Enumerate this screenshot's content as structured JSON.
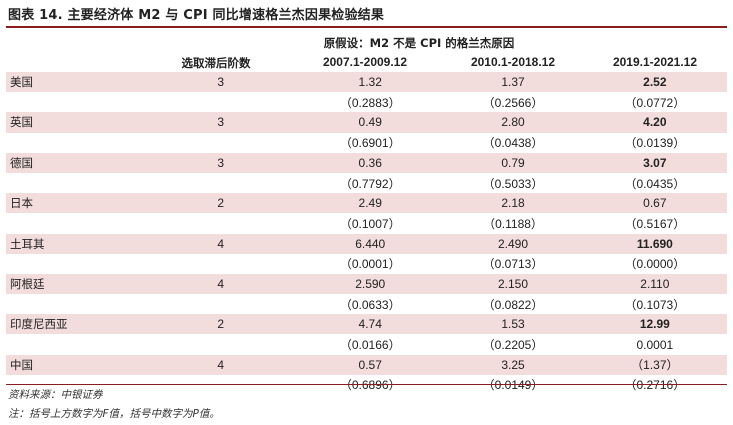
{
  "title": "图表 14. 主要经济体 M2 与 CPI 同比增速格兰杰因果检验结果",
  "header": {
    "hypothesis": "原假设：M2 不是 CPI 的格兰杰原因",
    "lag_label": "选取滞后阶数",
    "periods": [
      "2007.1-2009.12",
      "2010.1-2018.12",
      "2019.1-2021.12"
    ]
  },
  "rows": [
    {
      "country": "美国",
      "lag": "3",
      "f": [
        "1.32",
        "1.37",
        "2.52"
      ],
      "p": [
        "（0.2883）",
        "（0.2566）",
        "（0.0772）"
      ],
      "bold": [
        false,
        false,
        true
      ]
    },
    {
      "country": "英国",
      "lag": "3",
      "f": [
        "0.49",
        "2.80",
        "4.20"
      ],
      "p": [
        "（0.6901）",
        "（0.0438）",
        "（0.0139）"
      ],
      "bold": [
        false,
        false,
        true
      ]
    },
    {
      "country": "德国",
      "lag": "3",
      "f": [
        "0.36",
        "0.79",
        "3.07"
      ],
      "p": [
        "（0.7792）",
        "（0.5033）",
        "（0.0435）"
      ],
      "bold": [
        false,
        false,
        true
      ]
    },
    {
      "country": "日本",
      "lag": "2",
      "f": [
        "2.49",
        "2.18",
        "0.67"
      ],
      "p": [
        "（0.1007）",
        "（0.1188）",
        "（0.5167）"
      ],
      "bold": [
        false,
        false,
        false
      ]
    },
    {
      "country": "土耳其",
      "lag": "4",
      "f": [
        "6.440",
        "2.490",
        "11.690"
      ],
      "p": [
        "（0.0001）",
        "（0.0713）",
        "（0.0000）"
      ],
      "bold": [
        false,
        false,
        true
      ]
    },
    {
      "country": "阿根廷",
      "lag": "4",
      "f": [
        "2.590",
        "2.150",
        "2.110"
      ],
      "p": [
        "（0.0633）",
        "（0.0822）",
        "（0.1073）"
      ],
      "bold": [
        false,
        false,
        false
      ]
    },
    {
      "country": "印度尼西亚",
      "lag": "2",
      "f": [
        "4.74",
        "1.53",
        "12.99"
      ],
      "p": [
        "（0.0166）",
        "（0.2205）",
        "0.0001"
      ],
      "bold": [
        false,
        false,
        true
      ]
    },
    {
      "country": "中国",
      "lag": "4",
      "f": [
        "0.57",
        "3.25",
        "（1.37）"
      ],
      "p": [
        "（0.6896）",
        "（0.0149）",
        "（0.2716）"
      ],
      "bold": [
        false,
        false,
        false
      ]
    }
  ],
  "source": "资料来源：中银证券",
  "note": "注：括号上方数字为F值，括号中数字为P值。",
  "colors": {
    "accent": "#8a1c1c",
    "shade": "#f2dcdc"
  }
}
